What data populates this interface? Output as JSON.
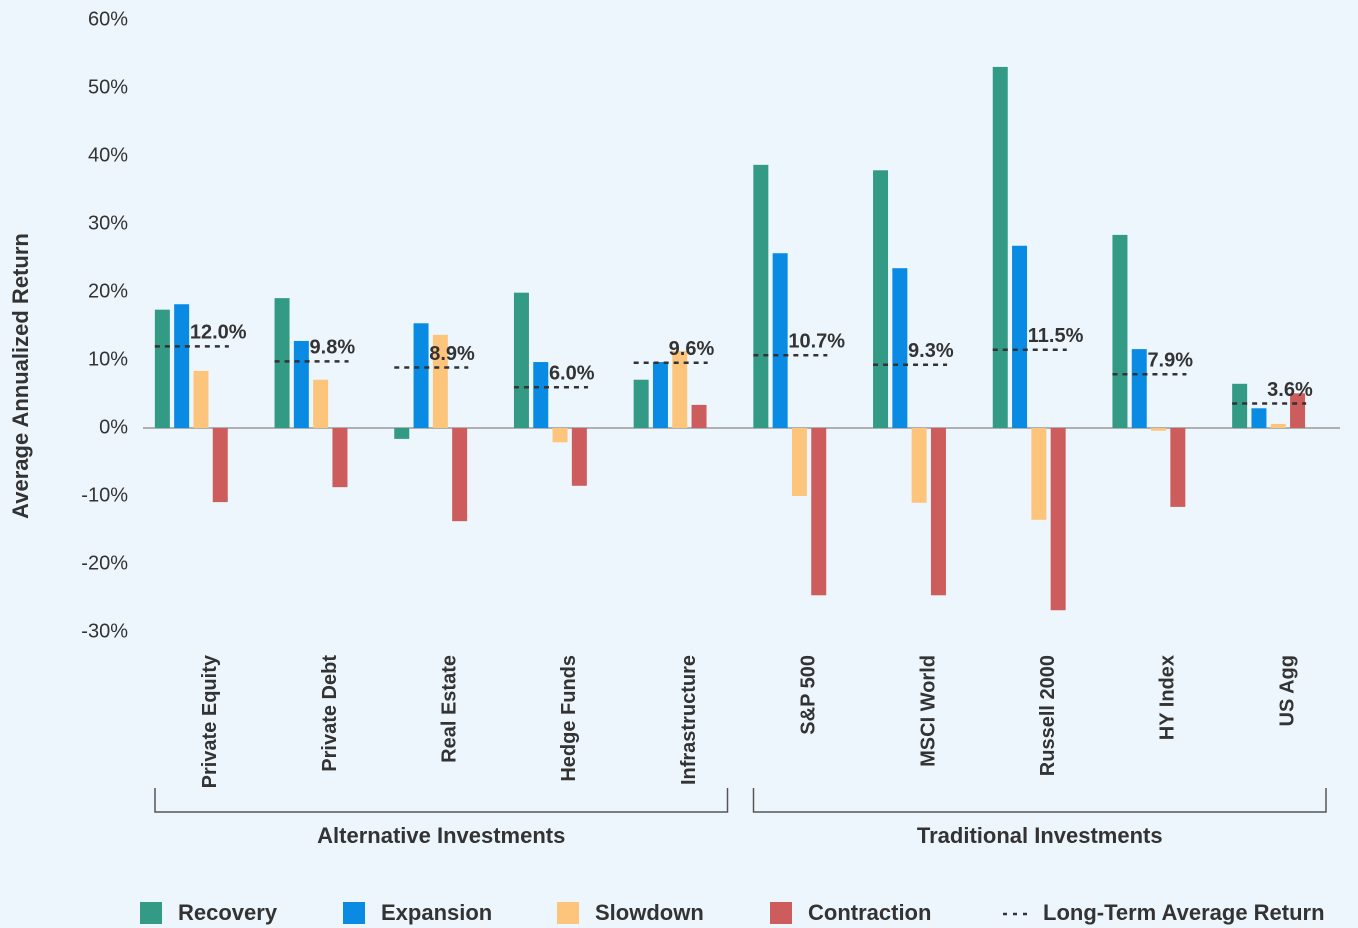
{
  "chart_data": {
    "type": "bar",
    "ylabel": "Average Annualized Return",
    "groups": [
      {
        "name": "Alternative Investments",
        "categories": [
          "Private Equity",
          "Private Debt",
          "Real Estate",
          "Hedge Funds",
          "Infrastructure"
        ]
      },
      {
        "name": "Traditional Investments",
        "categories": [
          "S&P 500",
          "MSCI World",
          "Russell 2000",
          "HY Index",
          "US Agg"
        ]
      }
    ],
    "series": [
      {
        "name": "Recovery",
        "color": "#339a85",
        "values": [
          17.4,
          19.1,
          -1.6,
          19.9,
          7.1,
          38.7,
          37.9,
          53.1,
          28.4,
          6.5
        ]
      },
      {
        "name": "Expansion",
        "color": "#0a8be3",
        "values": [
          18.2,
          12.8,
          15.4,
          9.7,
          9.7,
          25.7,
          23.5,
          26.8,
          11.6,
          2.9
        ]
      },
      {
        "name": "Slowdown",
        "color": "#fdc57b",
        "values": [
          8.4,
          7.1,
          13.7,
          -2.1,
          11.3,
          -10.0,
          -11.0,
          -13.5,
          -0.4,
          0.6
        ]
      },
      {
        "name": "Contraction",
        "color": "#cd5c5c",
        "values": [
          -10.9,
          -8.7,
          -13.7,
          -8.5,
          3.4,
          -24.6,
          -24.6,
          -26.8,
          -11.6,
          5.1
        ]
      }
    ],
    "average": {
      "name": "Long-Term Average Return",
      "color": "#333333",
      "values": [
        12.0,
        9.8,
        8.9,
        6.0,
        9.6,
        10.7,
        9.3,
        11.5,
        7.9,
        3.6
      ],
      "value_labels": [
        "12.0%",
        "9.8%",
        "8.9%",
        "6.0%",
        "9.6%",
        "10.7%",
        "9.3%",
        "11.5%",
        "7.9%",
        "3.6%"
      ]
    },
    "ylim": [
      -30,
      60
    ],
    "yticks": [
      {
        "value": -30,
        "label": "-30%"
      },
      {
        "value": -20,
        "label": "-20%"
      },
      {
        "value": -10,
        "label": "-10%"
      },
      {
        "value": 0,
        "label": "0%"
      },
      {
        "value": 10,
        "label": "10%"
      },
      {
        "value": 20,
        "label": "20%"
      },
      {
        "value": 30,
        "label": "30%"
      },
      {
        "value": 40,
        "label": "40%"
      },
      {
        "value": 50,
        "label": "50%"
      },
      {
        "value": 60,
        "label": "60%"
      }
    ],
    "grid": false
  }
}
